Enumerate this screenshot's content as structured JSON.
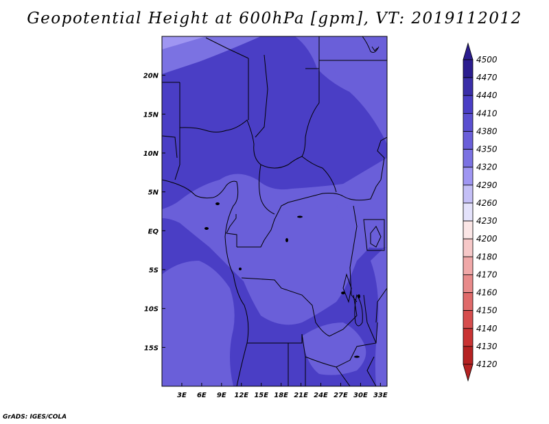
{
  "title": "Geopotential Height at 600hPa [gpm], VT: 2019112012",
  "credit": "GrADS: IGES/COLA",
  "map": {
    "lon_range": [
      0,
      34
    ],
    "lat_range": [
      -20,
      25
    ],
    "xticks": [
      {
        "value": 3,
        "label": "3E"
      },
      {
        "value": 6,
        "label": "6E"
      },
      {
        "value": 9,
        "label": "9E"
      },
      {
        "value": 12,
        "label": "12E"
      },
      {
        "value": 15,
        "label": "15E"
      },
      {
        "value": 18,
        "label": "18E"
      },
      {
        "value": 21,
        "label": "21E"
      },
      {
        "value": 24,
        "label": "24E"
      },
      {
        "value": 27,
        "label": "27E"
      },
      {
        "value": 30,
        "label": "30E"
      },
      {
        "value": 33,
        "label": "33E"
      }
    ],
    "yticks": [
      {
        "value": 20,
        "label": "20N"
      },
      {
        "value": 15,
        "label": "15N"
      },
      {
        "value": 10,
        "label": "10N"
      },
      {
        "value": 5,
        "label": "5N"
      },
      {
        "value": 0,
        "label": "EQ"
      },
      {
        "value": -5,
        "label": "5S"
      },
      {
        "value": -10,
        "label": "10S"
      },
      {
        "value": -15,
        "label": "15S"
      }
    ],
    "bands": [
      {
        "level": "4410-4440",
        "color": "#4a3ec5"
      },
      {
        "level": "4380-4410",
        "color": "#6a5fd9"
      },
      {
        "level": "4350-4380",
        "color": "#7b72e2"
      },
      {
        "level": "4320-4350",
        "color": "#9f96f2"
      }
    ]
  },
  "colorbar": {
    "levels": [
      "4500",
      "4470",
      "4440",
      "4410",
      "4380",
      "4350",
      "4320",
      "4290",
      "4260",
      "4230",
      "4200",
      "4180",
      "4170",
      "4160",
      "4150",
      "4140",
      "4130",
      "4120"
    ],
    "colors": [
      "#2b1d8f",
      "#3a2ea8",
      "#4a3ec5",
      "#5a4fd0",
      "#6a5fd9",
      "#7b72e2",
      "#9f96f2",
      "#c4bff6",
      "#e4e2fb",
      "#fbe6e6",
      "#f6c8c8",
      "#f0a8a8",
      "#e88a8a",
      "#df6a6a",
      "#d64d4d",
      "#c93333",
      "#b52222"
    ]
  }
}
